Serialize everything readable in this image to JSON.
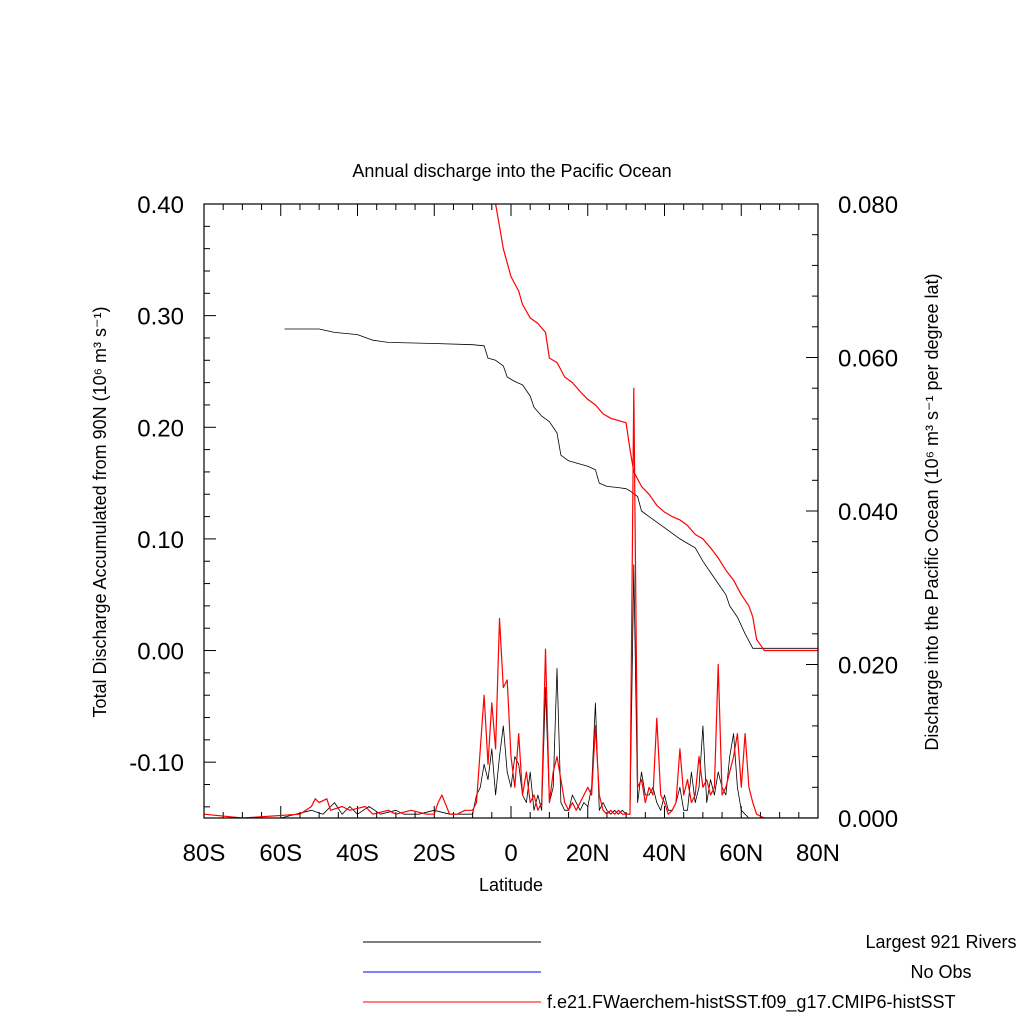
{
  "chart_data": {
    "type": "line",
    "title": "Annual discharge into the Pacific Ocean",
    "xlabel": "Latitude",
    "ylabel_left": "Total Discharge Accumulated from 90N (10⁶ m³ s⁻¹)",
    "ylabel_right": "Discharge into the Pacific Ocean (10⁶ m³ s⁻¹ per degree lat)",
    "xlim": [
      -80,
      80
    ],
    "ylim_left": [
      -0.15,
      0.4
    ],
    "ylim_right": [
      0.0,
      0.08
    ],
    "x_ticks": [
      {
        "value": -80,
        "label": "80S"
      },
      {
        "value": -60,
        "label": "60S"
      },
      {
        "value": -40,
        "label": "40S"
      },
      {
        "value": -20,
        "label": "20S"
      },
      {
        "value": 0,
        "label": "0"
      },
      {
        "value": 20,
        "label": "20N"
      },
      {
        "value": 40,
        "label": "40N"
      },
      {
        "value": 60,
        "label": "60N"
      },
      {
        "value": 80,
        "label": "80N"
      }
    ],
    "y_ticks_left": [
      {
        "value": 0.4,
        "label": "0.40"
      },
      {
        "value": 0.3,
        "label": "0.30"
      },
      {
        "value": 0.2,
        "label": "0.20"
      },
      {
        "value": 0.1,
        "label": "0.10"
      },
      {
        "value": 0.0,
        "label": "0.00"
      },
      {
        "value": -0.1,
        "label": "-0.10"
      }
    ],
    "y_ticks_right": [
      {
        "value": 0.08,
        "label": "0.080"
      },
      {
        "value": 0.06,
        "label": "0.060"
      },
      {
        "value": 0.04,
        "label": "0.040"
      },
      {
        "value": 0.02,
        "label": "0.020"
      },
      {
        "value": 0.0,
        "label": "0.000"
      }
    ],
    "legend": [
      {
        "label": "Largest 921 Rivers",
        "color": "#000000"
      },
      {
        "label": "No Obs",
        "color": "#0000ff"
      },
      {
        "label": "f.e21.FWaerchem-histSST.f09_g17.CMIP6-histSST",
        "color": "#ff0000"
      }
    ],
    "series": [
      {
        "axis": "left",
        "color": "#000000",
        "points": [
          [
            -59,
            0.288
          ],
          [
            -50,
            0.288
          ],
          [
            -46,
            0.285
          ],
          [
            -40,
            0.283
          ],
          [
            -36,
            0.278
          ],
          [
            -32,
            0.276
          ],
          [
            -20,
            0.275
          ],
          [
            -10,
            0.274
          ],
          [
            -7,
            0.273
          ],
          [
            -6,
            0.262
          ],
          [
            -4,
            0.26
          ],
          [
            -2,
            0.255
          ],
          [
            -1,
            0.245
          ],
          [
            1,
            0.241
          ],
          [
            3,
            0.238
          ],
          [
            5,
            0.228
          ],
          [
            6,
            0.218
          ],
          [
            8,
            0.21
          ],
          [
            10,
            0.205
          ],
          [
            12,
            0.195
          ],
          [
            13,
            0.175
          ],
          [
            15,
            0.17
          ],
          [
            17,
            0.168
          ],
          [
            20,
            0.165
          ],
          [
            22,
            0.162
          ],
          [
            23,
            0.15
          ],
          [
            25,
            0.147
          ],
          [
            28,
            0.146
          ],
          [
            30,
            0.145
          ],
          [
            31,
            0.143
          ],
          [
            33,
            0.138
          ],
          [
            34,
            0.125
          ],
          [
            36,
            0.12
          ],
          [
            38,
            0.115
          ],
          [
            40,
            0.11
          ],
          [
            42,
            0.105
          ],
          [
            44,
            0.1
          ],
          [
            46,
            0.096
          ],
          [
            48,
            0.092
          ],
          [
            50,
            0.08
          ],
          [
            52,
            0.07
          ],
          [
            54,
            0.06
          ],
          [
            56,
            0.05
          ],
          [
            57,
            0.04
          ],
          [
            59,
            0.03
          ],
          [
            61,
            0.015
          ],
          [
            63,
            0.002
          ],
          [
            80,
            0.002
          ]
        ]
      },
      {
        "axis": "left",
        "color": "#ff0000",
        "points": [
          [
            -4,
            0.4
          ],
          [
            -3,
            0.38
          ],
          [
            -2,
            0.36
          ],
          [
            0,
            0.335
          ],
          [
            2,
            0.322
          ],
          [
            3,
            0.31
          ],
          [
            5,
            0.298
          ],
          [
            7,
            0.293
          ],
          [
            9,
            0.285
          ],
          [
            10,
            0.262
          ],
          [
            12,
            0.258
          ],
          [
            14,
            0.245
          ],
          [
            16,
            0.24
          ],
          [
            18,
            0.232
          ],
          [
            20,
            0.225
          ],
          [
            22,
            0.22
          ],
          [
            24,
            0.212
          ],
          [
            26,
            0.208
          ],
          [
            28,
            0.206
          ],
          [
            30,
            0.204
          ],
          [
            31,
            0.18
          ],
          [
            32,
            0.16
          ],
          [
            34,
            0.147
          ],
          [
            36,
            0.14
          ],
          [
            38,
            0.13
          ],
          [
            40,
            0.124
          ],
          [
            42,
            0.12
          ],
          [
            44,
            0.117
          ],
          [
            46,
            0.112
          ],
          [
            48,
            0.104
          ],
          [
            50,
            0.1
          ],
          [
            52,
            0.092
          ],
          [
            54,
            0.083
          ],
          [
            56,
            0.072
          ],
          [
            58,
            0.063
          ],
          [
            60,
            0.05
          ],
          [
            62,
            0.04
          ],
          [
            63,
            0.03
          ],
          [
            64,
            0.01
          ],
          [
            66,
            0.0
          ],
          [
            80,
            0.0
          ]
        ]
      },
      {
        "axis": "right",
        "color": "#000000",
        "points": [
          [
            -80,
            0
          ],
          [
            -70,
            0
          ],
          [
            -60,
            0
          ],
          [
            -52,
            0.001
          ],
          [
            -49,
            0.0005
          ],
          [
            -46,
            0.002
          ],
          [
            -44,
            0.0005
          ],
          [
            -42,
            0.0015
          ],
          [
            -40,
            0.0005
          ],
          [
            -37,
            0.0015
          ],
          [
            -34,
            0.0005
          ],
          [
            -30,
            0.001
          ],
          [
            -28,
            0.0005
          ],
          [
            -24,
            0.0005
          ],
          [
            -20,
            0.001
          ],
          [
            -16,
            0.0005
          ],
          [
            -10,
            0.0005
          ],
          [
            -9,
            0.003
          ],
          [
            -8,
            0.004
          ],
          [
            -7,
            0.007
          ],
          [
            -6,
            0.005
          ],
          [
            -5,
            0.009
          ],
          [
            -4,
            0.003
          ],
          [
            -3,
            0.008
          ],
          [
            -2,
            0.012
          ],
          [
            -1,
            0.006
          ],
          [
            0,
            0.004
          ],
          [
            1,
            0.008
          ],
          [
            2,
            0.007
          ],
          [
            3,
            0.003
          ],
          [
            4,
            0.002
          ],
          [
            5,
            0.006
          ],
          [
            6,
            0.001
          ],
          [
            7,
            0.003
          ],
          [
            8,
            0.001
          ],
          [
            9,
            0.017
          ],
          [
            10,
            0.002
          ],
          [
            11,
            0.004
          ],
          [
            12,
            0.0195
          ],
          [
            13,
            0.002
          ],
          [
            14,
            0.001
          ],
          [
            15,
            0.001
          ],
          [
            16,
            0.003
          ],
          [
            17,
            0.002
          ],
          [
            18,
            0.001
          ],
          [
            19,
            0.002
          ],
          [
            20,
            0.0015
          ],
          [
            21,
            0.004
          ],
          [
            22,
            0.015
          ],
          [
            23,
            0.001
          ],
          [
            24,
            0.002
          ],
          [
            25,
            0.001
          ],
          [
            26,
            0.0005
          ],
          [
            27,
            0.001
          ],
          [
            28,
            0.0005
          ],
          [
            29,
            0.001
          ],
          [
            30,
            0.0005
          ],
          [
            31,
            0.0005
          ],
          [
            32,
            0.033
          ],
          [
            33,
            0.002
          ],
          [
            34,
            0.006
          ],
          [
            35,
            0.003
          ],
          [
            36,
            0.003
          ],
          [
            37,
            0.004
          ],
          [
            38,
            0.002
          ],
          [
            39,
            0.001
          ],
          [
            40,
            0.003
          ],
          [
            41,
            0.001
          ],
          [
            42,
            0.001
          ],
          [
            43,
            0.002
          ],
          [
            44,
            0.004
          ],
          [
            45,
            0.001
          ],
          [
            46,
            0.001
          ],
          [
            47,
            0.006
          ],
          [
            48,
            0.002
          ],
          [
            49,
            0.004
          ],
          [
            50,
            0.012
          ],
          [
            51,
            0.002
          ],
          [
            52,
            0.005
          ],
          [
            53,
            0.003
          ],
          [
            54,
            0.006
          ],
          [
            55,
            0.004
          ],
          [
            56,
            0.003
          ],
          [
            57,
            0.008
          ],
          [
            58,
            0.011
          ],
          [
            59,
            0.004
          ],
          [
            60,
            0.001
          ],
          [
            61,
            0.0005
          ],
          [
            62,
            0
          ],
          [
            64,
            0
          ],
          [
            80,
            0
          ]
        ]
      },
      {
        "axis": "right",
        "color": "#ff0000",
        "points": [
          [
            -80,
            0.0005
          ],
          [
            -70,
            0
          ],
          [
            -55,
            0.0005
          ],
          [
            -52,
            0.0015
          ],
          [
            -51,
            0.0025
          ],
          [
            -50,
            0.002
          ],
          [
            -48,
            0.0025
          ],
          [
            -47,
            0.001
          ],
          [
            -44,
            0.0015
          ],
          [
            -42,
            0.001
          ],
          [
            -38,
            0.0015
          ],
          [
            -36,
            0.0005
          ],
          [
            -32,
            0.001
          ],
          [
            -30,
            0.0005
          ],
          [
            -26,
            0.001
          ],
          [
            -22,
            0.0005
          ],
          [
            -20,
            0.0005
          ],
          [
            -19,
            0.002
          ],
          [
            -18,
            0.003
          ],
          [
            -16,
            0.0005
          ],
          [
            -14,
            0.0005
          ],
          [
            -12,
            0.001
          ],
          [
            -10,
            0.001
          ],
          [
            -9,
            0.002
          ],
          [
            -8,
            0.009
          ],
          [
            -7,
            0.016
          ],
          [
            -6,
            0.007
          ],
          [
            -5,
            0.015
          ],
          [
            -4,
            0.009
          ],
          [
            -3,
            0.026
          ],
          [
            -2,
            0.017
          ],
          [
            -1,
            0.018
          ],
          [
            0,
            0.008
          ],
          [
            1,
            0.004
          ],
          [
            2,
            0.011
          ],
          [
            3,
            0.003
          ],
          [
            4,
            0.006
          ],
          [
            5,
            0.002
          ],
          [
            6,
            0.003
          ],
          [
            7,
            0.001
          ],
          [
            8,
            0.002
          ],
          [
            9,
            0.022
          ],
          [
            10,
            0.002
          ],
          [
            11,
            0.006
          ],
          [
            12,
            0.008
          ],
          [
            13,
            0.005
          ],
          [
            14,
            0.002
          ],
          [
            15,
            0.001
          ],
          [
            16,
            0.002
          ],
          [
            17,
            0.001
          ],
          [
            18,
            0.002
          ],
          [
            19,
            0.003
          ],
          [
            20,
            0.004
          ],
          [
            21,
            0.003
          ],
          [
            22,
            0.012
          ],
          [
            23,
            0.003
          ],
          [
            24,
            0.001
          ],
          [
            25,
            0.0005
          ],
          [
            26,
            0.001
          ],
          [
            27,
            0.0005
          ],
          [
            28,
            0.001
          ],
          [
            29,
            0.0005
          ],
          [
            30,
            0.0005
          ],
          [
            31,
            0.0005
          ],
          [
            32,
            0.056
          ],
          [
            33,
            0.004
          ],
          [
            34,
            0.005
          ],
          [
            35,
            0.002
          ],
          [
            36,
            0.004
          ],
          [
            37,
            0.003
          ],
          [
            38,
            0.013
          ],
          [
            39,
            0.003
          ],
          [
            40,
            0.002
          ],
          [
            41,
            0.0005
          ],
          [
            42,
            0.001
          ],
          [
            43,
            0.002
          ],
          [
            44,
            0.009
          ],
          [
            45,
            0.003
          ],
          [
            46,
            0.005
          ],
          [
            47,
            0.002
          ],
          [
            48,
            0.003
          ],
          [
            49,
            0.008
          ],
          [
            50,
            0.004
          ],
          [
            51,
            0.005
          ],
          [
            52,
            0.003
          ],
          [
            53,
            0.004
          ],
          [
            54,
            0.02
          ],
          [
            55,
            0.003
          ],
          [
            56,
            0.004
          ],
          [
            57,
            0.006
          ],
          [
            58,
            0.008
          ],
          [
            59,
            0.011
          ],
          [
            60,
            0.004
          ],
          [
            61,
            0.011
          ],
          [
            62,
            0.004
          ],
          [
            63,
            0.002
          ],
          [
            64,
            0.0005
          ],
          [
            66,
            0
          ],
          [
            80,
            0
          ]
        ]
      }
    ]
  }
}
